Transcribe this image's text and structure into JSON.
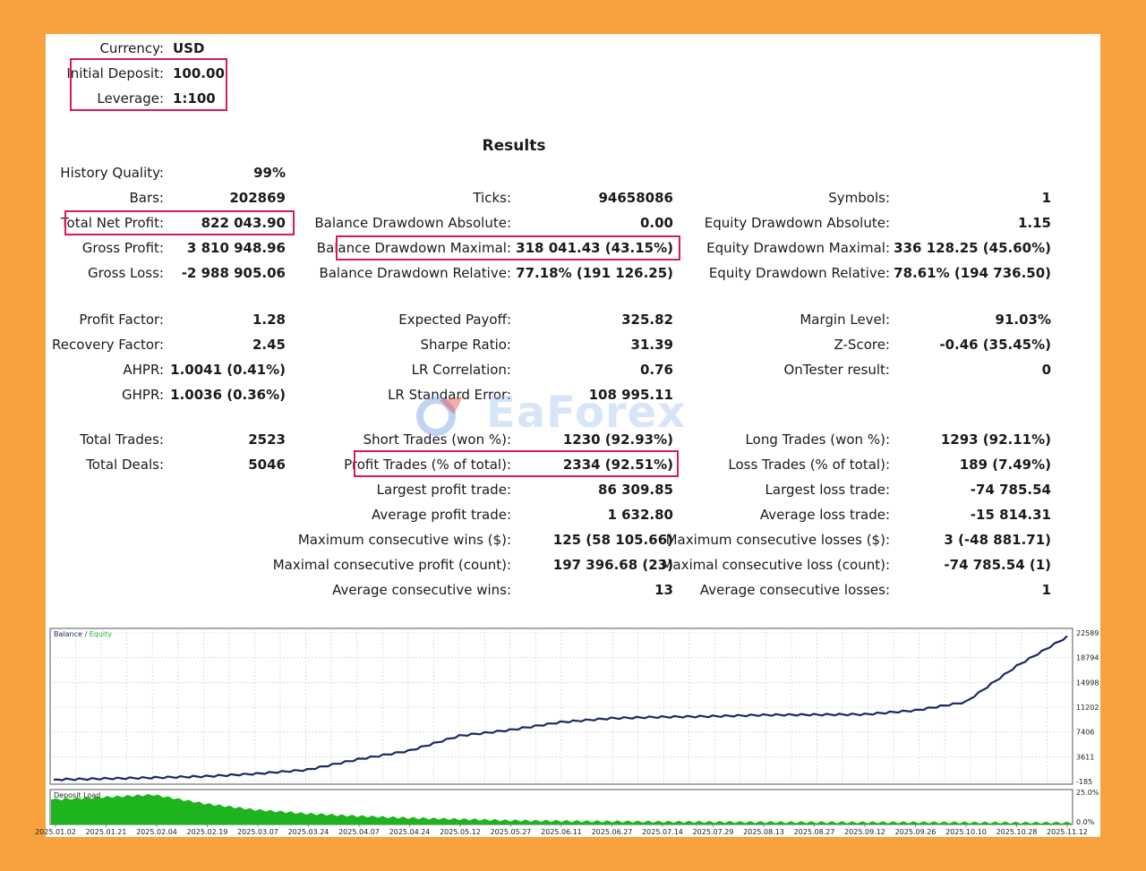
{
  "header": {
    "currency_label": "Currency:",
    "currency_value": "USD",
    "deposit_label": "Initial Deposit:",
    "deposit_value": "100.00",
    "leverage_label": "Leverage:",
    "leverage_value": "1:100"
  },
  "results_title": "Results",
  "col1": [
    {
      "label": "History Quality:",
      "value": "99%"
    },
    {
      "label": "Bars:",
      "value": "202869"
    },
    {
      "label": "Total Net Profit:",
      "value": "822 043.90"
    },
    {
      "label": "Gross Profit:",
      "value": "3 810 948.96"
    },
    {
      "label": "Gross Loss:",
      "value": "-2 988 905.06"
    },
    {
      "label": "Profit Factor:",
      "value": "1.28"
    },
    {
      "label": "Recovery Factor:",
      "value": "2.45"
    },
    {
      "label": "AHPR:",
      "value": "1.0041 (0.41%)"
    },
    {
      "label": "GHPR:",
      "value": "1.0036 (0.36%)"
    },
    {
      "label": "Total Trades:",
      "value": "2523"
    },
    {
      "label": "Total Deals:",
      "value": "5046"
    }
  ],
  "col2": [
    {
      "label": "Ticks:",
      "value": "94658086"
    },
    {
      "label": "Balance Drawdown Absolute:",
      "value": "0.00"
    },
    {
      "label": "Balance Drawdown Maximal:",
      "value": "318 041.43 (43.15%)"
    },
    {
      "label": "Balance Drawdown Relative:",
      "value": "77.18% (191 126.25)"
    },
    {
      "label": "Expected Payoff:",
      "value": "325.82"
    },
    {
      "label": "Sharpe Ratio:",
      "value": "31.39"
    },
    {
      "label": "LR Correlation:",
      "value": "0.76"
    },
    {
      "label": "LR Standard Error:",
      "value": "108 995.11"
    },
    {
      "label": "Short Trades (won %):",
      "value": "1230 (92.93%)"
    },
    {
      "label": "Profit Trades (% of total):",
      "value": "2334 (92.51%)"
    },
    {
      "label": "Largest profit trade:",
      "value": "86 309.85"
    },
    {
      "label": "Average profit trade:",
      "value": "1 632.80"
    },
    {
      "label": "Maximum consecutive wins ($):",
      "value": "125 (58 105.66)"
    },
    {
      "label": "Maximal consecutive profit (count):",
      "value": "197 396.68 (23)"
    },
    {
      "label": "Average consecutive wins:",
      "value": "13"
    }
  ],
  "col3": [
    {
      "label": "Symbols:",
      "value": "1"
    },
    {
      "label": "Equity Drawdown Absolute:",
      "value": "1.15"
    },
    {
      "label": "Equity Drawdown Maximal:",
      "value": "336 128.25 (45.60%)"
    },
    {
      "label": "Equity Drawdown Relative:",
      "value": "78.61% (194 736.50)"
    },
    {
      "label": "Margin Level:",
      "value": "91.03%"
    },
    {
      "label": "Z-Score:",
      "value": "-0.46 (35.45%)"
    },
    {
      "label": "OnTester result:",
      "value": "0"
    },
    {
      "label": "Long Trades (won %):",
      "value": "1293 (92.11%)"
    },
    {
      "label": "Loss Trades (% of total):",
      "value": "189 (7.49%)"
    },
    {
      "label": "Largest loss trade:",
      "value": "-74 785.54"
    },
    {
      "label": "Average loss trade:",
      "value": "-15 814.31"
    },
    {
      "label": "Maximum consecutive losses ($):",
      "value": "3 (-48 881.71)"
    },
    {
      "label": "Maximal consecutive loss (count):",
      "value": "-74 785.54 (1)"
    },
    {
      "label": "Average consecutive losses:",
      "value": "1"
    }
  ],
  "watermark": "EaForex",
  "colors": {
    "background": "#f7a23e",
    "highlight": "#d81b53",
    "balance_line": "#1b2a5e",
    "equity_line": "#2bb02b",
    "deposit_load": "#1eb41e"
  },
  "chart_data": [
    {
      "type": "line",
      "legend": [
        "Balance",
        "/",
        "Equity"
      ],
      "yticks": [
        "22589",
        "18794",
        "14998",
        "11202",
        "7406",
        "3611",
        "-185"
      ],
      "ylim": [
        -185,
        22589
      ],
      "series": [
        {
          "name": "Balance",
          "x": [
            "2025.01.02",
            "2025.01.21",
            "2025.02.04",
            "2025.02.19",
            "2025.03.07",
            "2025.03.24",
            "2025.04.07",
            "2025.04.24",
            "2025.05.12",
            "2025.05.27",
            "2025.06.11",
            "2025.06.27",
            "2025.07.14",
            "2025.07.29",
            "2025.08.13",
            "2025.08.27",
            "2025.09.12",
            "2025.09.26",
            "2025.10.10",
            "2025.10.28",
            "2025.11.12"
          ],
          "values": [
            100,
            250,
            400,
            600,
            1000,
            1600,
            3200,
            4500,
            6800,
            7700,
            8900,
            9500,
            9700,
            9800,
            10000,
            10050,
            10100,
            10700,
            12000,
            17500,
            22000
          ]
        }
      ]
    },
    {
      "type": "area",
      "title": "Deposit Load",
      "yticks": [
        "25.0%",
        "0.0%"
      ],
      "ylim": [
        0,
        25
      ],
      "series": [
        {
          "name": "Deposit Load",
          "x": [
            "2025.01.02",
            "2025.01.21",
            "2025.02.04",
            "2025.02.19",
            "2025.03.07",
            "2025.03.24",
            "2025.04.07",
            "2025.04.24",
            "2025.05.12",
            "2025.05.27",
            "2025.06.11",
            "2025.06.27",
            "2025.07.14",
            "2025.07.29",
            "2025.08.13",
            "2025.08.27",
            "2025.09.12",
            "2025.09.26",
            "2025.10.10",
            "2025.10.28",
            "2025.11.12"
          ],
          "values": [
            19,
            21,
            23,
            16,
            11,
            8,
            6,
            4.5,
            3.5,
            2.5,
            2,
            1.7,
            1.5,
            1.3,
            1.2,
            1.1,
            1,
            1,
            0.9,
            0.8,
            0.8
          ]
        }
      ],
      "xticks": [
        "2025.01.02",
        "2025.01.21",
        "2025.02.04",
        "2025.02.19",
        "2025.03.07",
        "2025.03.24",
        "2025.04.07",
        "2025.04.24",
        "2025.05.12",
        "2025.05.27",
        "2025.06.11",
        "2025.06.27",
        "2025.07.14",
        "2025.07.29",
        "2025.08.13",
        "2025.08.27",
        "2025.09.12",
        "2025.09.26",
        "2025.10.10",
        "2025.10.28",
        "2025.11.12"
      ]
    }
  ]
}
